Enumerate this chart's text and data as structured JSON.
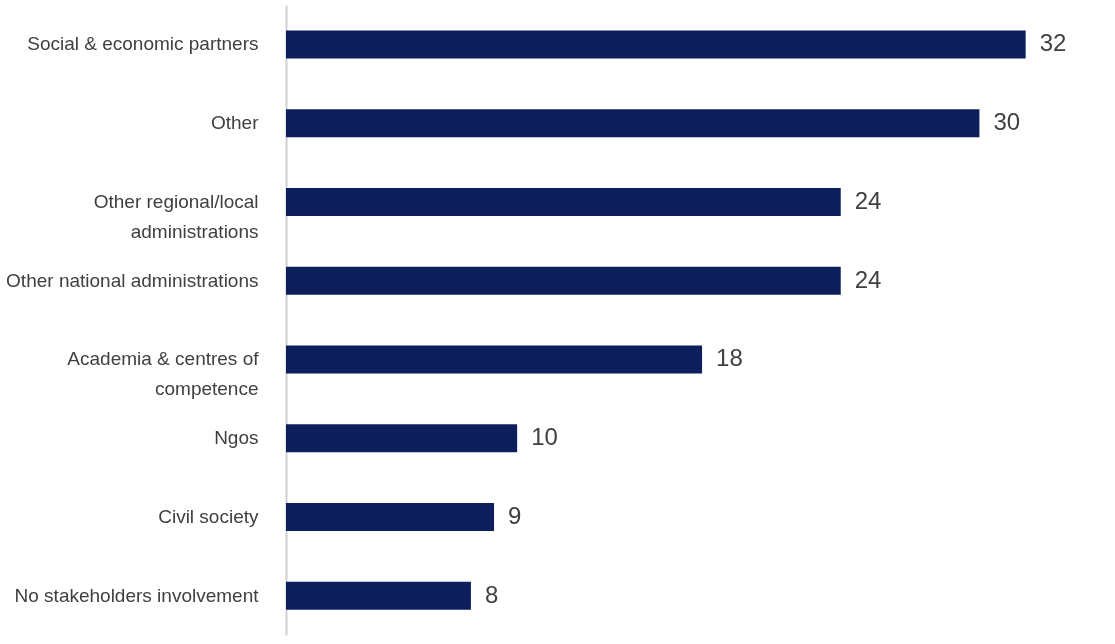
{
  "chart_data": {
    "type": "bar",
    "orientation": "horizontal",
    "categories": [
      "Social & economic partners",
      "Other",
      "Other regional/local administrations",
      "Other national administrations",
      "Academia & centres of competence",
      "Ngos",
      "Civil society",
      "No stakeholders involvement"
    ],
    "values": [
      32,
      30,
      24,
      24,
      18,
      10,
      9,
      8
    ],
    "color": "#0c1f5c",
    "data_labels": true,
    "tick_labels": "y"
  }
}
